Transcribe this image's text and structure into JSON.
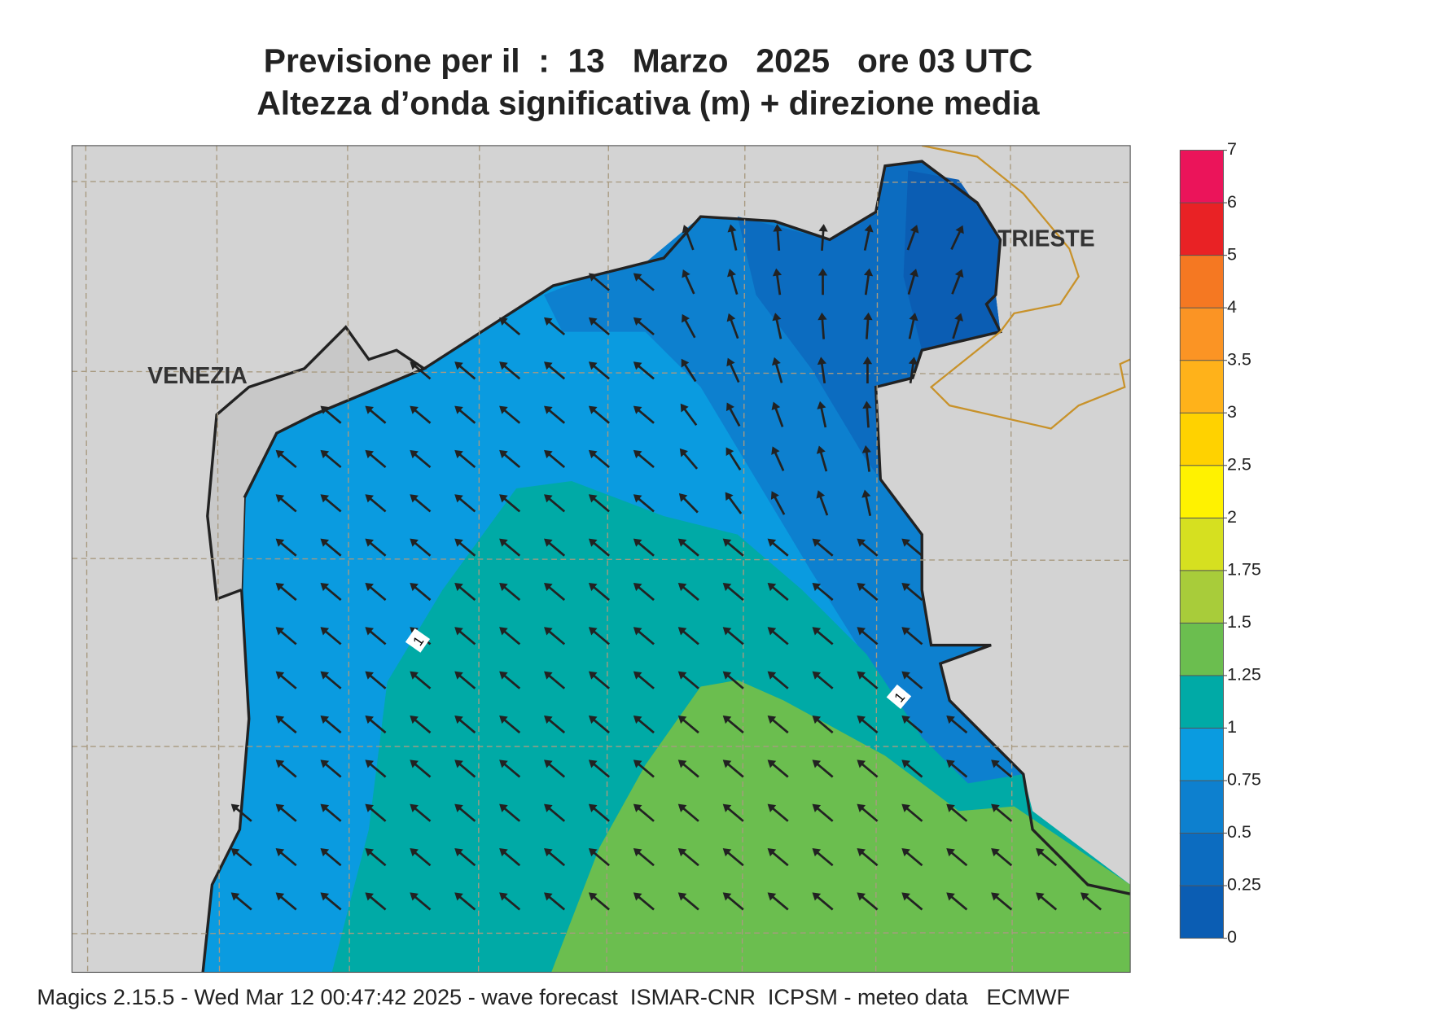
{
  "header": {
    "title": "Previsione per il  :  13   Marzo   2025   ore 03 UTC",
    "subtitle": "Altezza d’onda significativa (m) + direzione media"
  },
  "map": {
    "cities": [
      "VENEZIA",
      "TRIESTE"
    ],
    "contour_labels": [
      "1",
      "1"
    ]
  },
  "colorbar": {
    "ticks": [
      0,
      0.25,
      0.5,
      0.75,
      1,
      1.25,
      1.5,
      1.75,
      2,
      2.5,
      3,
      3.5,
      4,
      5,
      6,
      7
    ],
    "colors": [
      "#0b5db3",
      "#0c6cc0",
      "#0d80cf",
      "#0a9be0",
      "#00aaa6",
      "#6bbe4f",
      "#a8cc3a",
      "#d6e020",
      "#fff200",
      "#ffd200",
      "#ffb21a",
      "#fb9424",
      "#f57822",
      "#e92225",
      "#eb145a"
    ]
  },
  "footer": "Magics 2.15.5 - Wed Mar 12 00:47:42 2025 - wave forecast  ISMAR-CNR  ICPSM - meteo data   ECMWF"
}
